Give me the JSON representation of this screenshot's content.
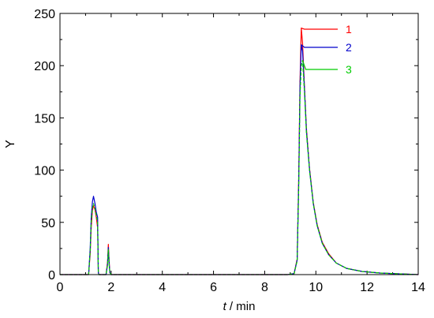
{
  "chart_data": {
    "type": "line",
    "xlabel_italic": "t",
    "xlabel_rest": " / min",
    "ylabel": "Y",
    "xlim": [
      0,
      14
    ],
    "ylim": [
      0,
      250
    ],
    "x_ticks": [
      0,
      2,
      4,
      6,
      8,
      10,
      12,
      14
    ],
    "y_ticks": [
      0,
      50,
      100,
      150,
      200,
      250
    ],
    "grid": false,
    "series": [
      {
        "name": "1",
        "color": "#ff0000",
        "dashed": false,
        "x": [
          0,
          1.12,
          1.18,
          1.22,
          1.27,
          1.31,
          1.37,
          1.42,
          1.47,
          1.5,
          1.52,
          1.56,
          1.8,
          1.86,
          1.89,
          1.92,
          1.95,
          2.0,
          8.9,
          9.15,
          9.27,
          9.33,
          9.38,
          9.43,
          9.48,
          9.55,
          9.63,
          9.75,
          9.9,
          10.05,
          10.25,
          10.5,
          10.8,
          11.2,
          11.8,
          12.5,
          13.3,
          14
        ],
        "y": [
          0,
          0,
          20,
          45,
          62,
          66,
          62,
          55,
          45,
          2,
          0,
          0,
          0,
          12,
          29,
          13,
          2,
          0,
          0,
          1,
          15,
          95,
          185,
          236,
          222,
          182,
          140,
          102,
          69,
          48,
          31,
          20,
          11,
          6,
          3,
          1.5,
          0.7,
          0
        ]
      },
      {
        "name": "2",
        "color": "#0000cc",
        "dashed": false,
        "x": [
          0,
          1.12,
          1.18,
          1.22,
          1.27,
          1.31,
          1.37,
          1.42,
          1.47,
          1.5,
          1.52,
          1.56,
          1.8,
          1.86,
          1.89,
          1.92,
          1.95,
          2.0,
          8.9,
          9.15,
          9.27,
          9.33,
          9.38,
          9.43,
          9.48,
          9.55,
          9.63,
          9.75,
          9.9,
          10.05,
          10.25,
          10.5,
          10.8,
          11.2,
          11.8,
          12.5,
          13.3,
          14
        ],
        "y": [
          0,
          0,
          25,
          55,
          70,
          75,
          68,
          60,
          55,
          2,
          0,
          0,
          0,
          10,
          26,
          11,
          2,
          0,
          0,
          1,
          14,
          90,
          180,
          220,
          214,
          180,
          138,
          101,
          68,
          47,
          30,
          19,
          11,
          6,
          3,
          1.5,
          0.7,
          0
        ]
      },
      {
        "name": "3",
        "color": "#00cc00",
        "dashed": true,
        "x": [
          0,
          1.12,
          1.18,
          1.22,
          1.27,
          1.31,
          1.37,
          1.42,
          1.47,
          1.5,
          1.52,
          1.56,
          1.8,
          1.86,
          1.89,
          1.92,
          1.95,
          2.0,
          8.9,
          9.15,
          9.27,
          9.33,
          9.38,
          9.43,
          9.48,
          9.55,
          9.63,
          9.75,
          9.9,
          10.05,
          10.25,
          10.5,
          10.8,
          11.2,
          11.8,
          12.5,
          13.3,
          14
        ],
        "y": [
          0,
          0,
          22,
          50,
          64,
          68,
          63,
          57,
          50,
          2,
          0,
          0,
          0,
          9,
          24,
          10,
          2,
          0,
          0,
          1,
          13,
          85,
          170,
          200,
          205,
          176,
          136,
          100,
          68,
          47,
          30,
          19,
          11,
          6,
          3,
          1.5,
          0.7,
          0
        ]
      }
    ]
  }
}
